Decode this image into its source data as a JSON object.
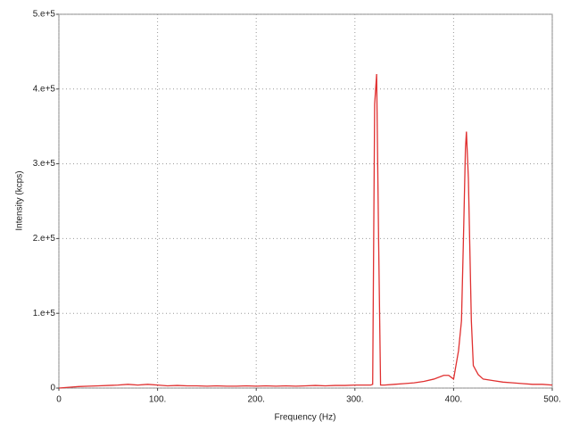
{
  "chart_data": {
    "type": "line",
    "x_label": "Frequency (Hz)",
    "y_label": "Intensity (kcps)",
    "xlim": [
      0,
      500
    ],
    "ylim": [
      0,
      500000
    ],
    "xticks": [
      0,
      {
        "value": 100,
        "label": "100."
      },
      {
        "value": 200,
        "label": "200."
      },
      {
        "value": 300,
        "label": "300."
      },
      {
        "value": 400,
        "label": "400."
      },
      {
        "value": 500,
        "label": "500."
      }
    ],
    "yticks": [
      0,
      {
        "value": 100000,
        "label": "1.e+5"
      },
      {
        "value": 200000,
        "label": "2.e+5"
      },
      {
        "value": 300000,
        "label": "3.e+5"
      },
      {
        "value": 400000,
        "label": "4.e+5"
      },
      {
        "value": 500000,
        "label": "5.e+5"
      }
    ],
    "grid": true,
    "x": [
      0,
      10,
      20,
      30,
      40,
      50,
      60,
      70,
      80,
      90,
      100,
      110,
      120,
      130,
      140,
      150,
      160,
      170,
      180,
      190,
      200,
      210,
      220,
      230,
      240,
      250,
      260,
      270,
      280,
      290,
      300,
      310,
      316,
      318,
      320,
      322,
      324,
      326,
      330,
      340,
      350,
      360,
      370,
      380,
      390,
      395,
      400,
      405,
      408,
      410,
      412,
      413,
      415,
      418,
      420,
      425,
      430,
      440,
      450,
      460,
      470,
      480,
      490,
      500
    ],
    "series": [
      {
        "name": "Intensity",
        "color": "#e03030",
        "values": [
          0,
          1000,
          2000,
          2500,
          3000,
          3500,
          4000,
          5000,
          4000,
          5000,
          4000,
          3000,
          3500,
          3000,
          3000,
          2500,
          3000,
          2500,
          2500,
          3000,
          2500,
          3000,
          2500,
          3000,
          2500,
          3000,
          3500,
          3000,
          3500,
          3500,
          4000,
          4000,
          4000,
          5000,
          380000,
          420000,
          200000,
          4000,
          4000,
          5000,
          6000,
          7000,
          9000,
          12000,
          17000,
          17000,
          12000,
          50000,
          90000,
          200000,
          320000,
          343000,
          280000,
          90000,
          30000,
          18000,
          12000,
          10000,
          8000,
          7000,
          6000,
          5000,
          5000,
          4000
        ]
      }
    ]
  }
}
